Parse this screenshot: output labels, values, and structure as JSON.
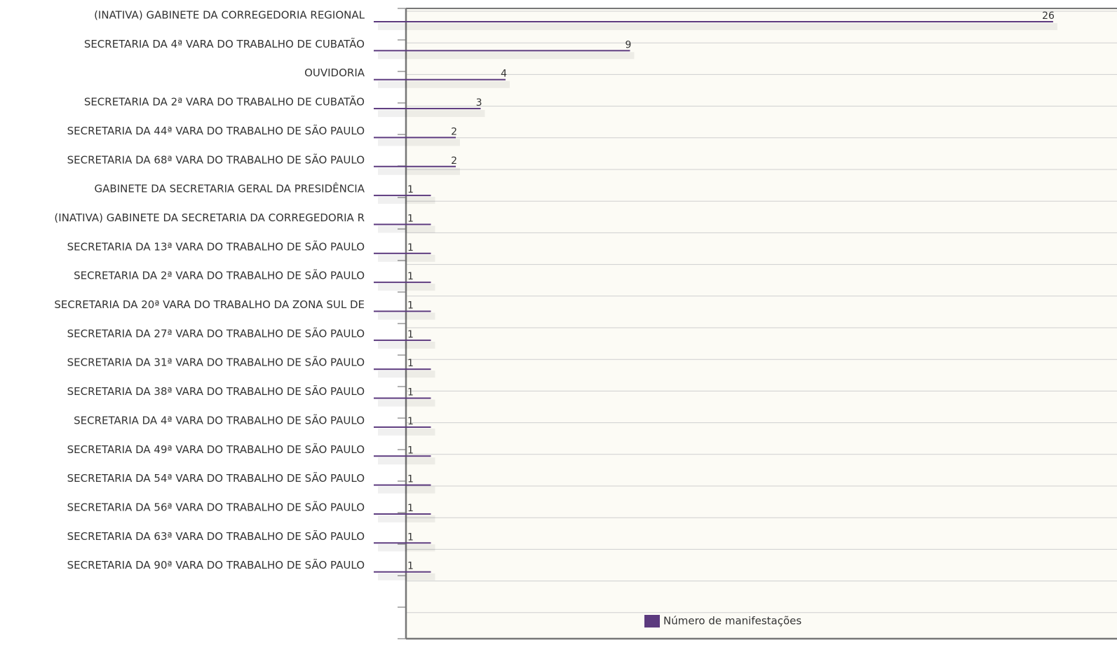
{
  "chart_data": {
    "type": "bar",
    "orientation": "horizontal",
    "categories": [
      "(INATIVA) GABINETE DA CORREGEDORIA REGIONAL",
      "SECRETARIA DA 4ª VARA DO TRABALHO DE CUBATÃO",
      "OUVIDORIA",
      "SECRETARIA DA 2ª VARA DO TRABALHO DE CUBATÃO",
      "SECRETARIA DA 44ª VARA DO TRABALHO DE SÃO PAULO",
      "SECRETARIA DA 68ª VARA DO TRABALHO DE SÃO PAULO",
      "GABINETE DA SECRETARIA GERAL DA PRESIDÊNCIA",
      "(INATIVA) GABINETE DA SECRETARIA DA CORREGEDORIA R",
      "SECRETARIA DA 13ª VARA DO TRABALHO DE SÃO PAULO",
      "SECRETARIA DA 2ª VARA DO TRABALHO DE SÃO PAULO",
      "SECRETARIA DA 20ª VARA DO TRABALHO DA ZONA SUL DE",
      "SECRETARIA DA 27ª VARA DO TRABALHO DE SÃO PAULO",
      "SECRETARIA DA 31ª VARA DO TRABALHO DE SÃO PAULO",
      "SECRETARIA DA 38ª VARA DO TRABALHO DE SÃO PAULO",
      "SECRETARIA DA 4ª VARA DO TRABALHO DE SÃO PAULO",
      "SECRETARIA DA 49ª VARA DO TRABALHO DE SÃO PAULO",
      "SECRETARIA DA 54ª VARA DO TRABALHO DE SÃO PAULO",
      "SECRETARIA DA 56ª VARA DO TRABALHO DE SÃO PAULO",
      "SECRETARIA DA 63ª VARA DO TRABALHO DE SÃO PAULO",
      "SECRETARIA DA 90ª VARA DO TRABALHO DE SÃO PAULO"
    ],
    "series": [
      {
        "name": "Número de manifestações",
        "values": [
          26,
          9,
          4,
          3,
          2,
          2,
          1,
          1,
          1,
          1,
          1,
          1,
          1,
          1,
          1,
          1,
          1,
          1,
          1,
          1
        ]
      }
    ],
    "xlim": [
      0,
      27
    ],
    "grid": true,
    "legend_position": "bottom",
    "colors": {
      "bar": "#5c3a7e",
      "plot_background": "#fcfbf5",
      "grid": "#cfcfcf",
      "axis": "#777777"
    }
  }
}
